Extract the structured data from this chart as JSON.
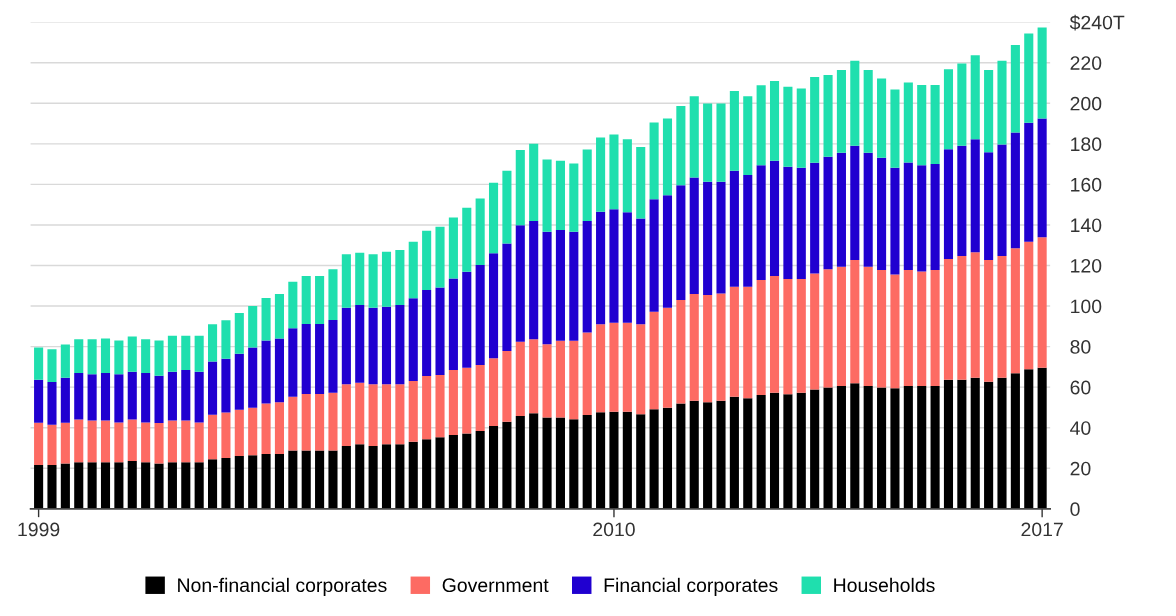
{
  "chart_data": {
    "type": "bar",
    "stacked": true,
    "categories": [
      "1999",
      null,
      null,
      null,
      null,
      null,
      null,
      null,
      null,
      null,
      null,
      null,
      null,
      null,
      null,
      null,
      null,
      null,
      null,
      null,
      null,
      null,
      null,
      null,
      null,
      null,
      null,
      null,
      null,
      null,
      null,
      null,
      null,
      null,
      null,
      null,
      null,
      null,
      null,
      null,
      null,
      null,
      null,
      "2010",
      null,
      null,
      null,
      null,
      null,
      null,
      null,
      null,
      null,
      null,
      null,
      null,
      null,
      null,
      null,
      null,
      null,
      null,
      null,
      null,
      null,
      null,
      null,
      null,
      null,
      null,
      null,
      null,
      null,
      null,
      null,
      "2017"
    ],
    "series": [
      {
        "name": "Non-financial corporates",
        "color": "#000000",
        "values": [
          21.6,
          21.6,
          22.3,
          23,
          23,
          23,
          23,
          23.6,
          23,
          22.3,
          23,
          23,
          23,
          24.4,
          25,
          26,
          26.4,
          27,
          27,
          28.7,
          28.7,
          28.7,
          28.7,
          31,
          31.8,
          31,
          31.8,
          31.8,
          33.1,
          34.3,
          35.3,
          36.4,
          37.2,
          38.4,
          40.9,
          43,
          45.8,
          47.1,
          45,
          45,
          44.2,
          46.3,
          47.6,
          47.9,
          47.9,
          46.6,
          49.1,
          49.9,
          52,
          53.3,
          52.5,
          53.3,
          55.3,
          54.5,
          56.1,
          57.3,
          56.5,
          57.3,
          58.9,
          59.8,
          60.6,
          61.9,
          60.6,
          59.8,
          59.5,
          60.6,
          60.6,
          60.6,
          63.6,
          63.6,
          64.7,
          62.7,
          64.7,
          66.8,
          68.8,
          69.6
        ]
      },
      {
        "name": "Government",
        "color": "#fd6b63",
        "values": [
          20.9,
          19.9,
          20.2,
          21,
          20.5,
          20.5,
          19.6,
          20.4,
          19.6,
          20,
          20.5,
          20.5,
          19.6,
          22,
          22.5,
          22.8,
          23.4,
          25,
          25.5,
          26.6,
          27.9,
          27.9,
          28.6,
          30.4,
          30.4,
          30.4,
          29.6,
          29.6,
          29.9,
          31.2,
          30.7,
          32.1,
          32.4,
          32.5,
          33.3,
          34.8,
          36.6,
          36.5,
          36.1,
          37.9,
          38.7,
          40.6,
          43.4,
          43.9,
          43.9,
          44.4,
          48.1,
          49.3,
          51,
          52.6,
          52.9,
          52.9,
          54.2,
          55,
          56.7,
          57.5,
          56.8,
          56,
          57.2,
          58.3,
          58.8,
          60.8,
          58.8,
          58,
          56.1,
          57.2,
          56.4,
          57.2,
          59.6,
          61.1,
          61.8,
          60,
          60,
          61.7,
          62.9,
          64.3
        ]
      },
      {
        "name": "Financial corporates",
        "color": "#2000d0",
        "values": [
          21.1,
          21.1,
          22.1,
          23,
          22.9,
          23.5,
          23.8,
          23.6,
          24.4,
          23.3,
          24.1,
          24.9,
          25,
          26.2,
          26.5,
          27.7,
          29.8,
          31,
          31.5,
          33.7,
          34.5,
          34.5,
          35.8,
          37.8,
          38.3,
          37.8,
          38.3,
          39.1,
          40.8,
          42.4,
          43.2,
          45.1,
          47.3,
          49.3,
          51.8,
          53.1,
          57.5,
          58.3,
          55.5,
          54.6,
          53.7,
          55,
          55.5,
          55.9,
          54.4,
          52.2,
          55.5,
          55.5,
          56.6,
          57.5,
          55.9,
          55.1,
          57.2,
          55.1,
          56.7,
          56.8,
          55.4,
          54.9,
          54.6,
          55.5,
          56.2,
          56.4,
          56.2,
          55.3,
          52.6,
          53,
          52.5,
          52.2,
          54.1,
          54.4,
          55.8,
          53.1,
          55,
          57.1,
          58.7,
          58.6
        ]
      },
      {
        "name": "Households",
        "color": "#1fdfae",
        "values": [
          15.9,
          16.1,
          16.4,
          16.6,
          17.2,
          17,
          16.6,
          17.4,
          16.6,
          17.4,
          17.8,
          17,
          17.8,
          18.4,
          19,
          20.1,
          20.4,
          21,
          22,
          23,
          23.7,
          23.7,
          25,
          26.3,
          25.8,
          26.3,
          27.1,
          27.1,
          27.9,
          29.2,
          29.9,
          30.1,
          31.6,
          32.9,
          34.8,
          35.8,
          37.1,
          38.1,
          35.7,
          34.1,
          33.7,
          35.3,
          36.6,
          36.9,
          36.1,
          35.3,
          37.8,
          37.8,
          39,
          40.1,
          38.6,
          38.6,
          39.4,
          38.9,
          39.4,
          39.4,
          39.4,
          39.1,
          42.3,
          40.3,
          40.8,
          41.9,
          40.8,
          39.1,
          38.6,
          39.5,
          39.5,
          39,
          39.5,
          40.5,
          41.4,
          40.6,
          41.3,
          43.1,
          44,
          44.9
        ]
      }
    ],
    "ylim": [
      0,
      240
    ],
    "yticks": [
      0,
      20,
      40,
      60,
      80,
      100,
      120,
      140,
      160,
      180,
      200,
      220,
      {
        "value": 240,
        "label": "$240T"
      }
    ],
    "grid": "y",
    "legend": "bottom"
  }
}
